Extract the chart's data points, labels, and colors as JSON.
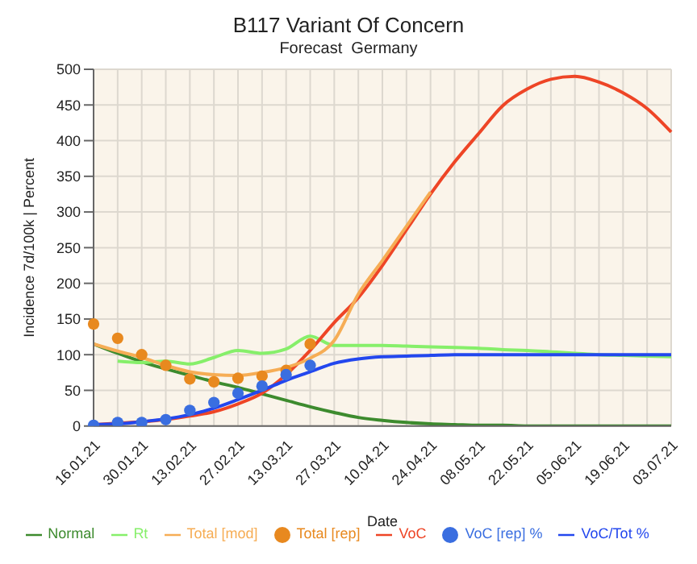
{
  "chart_data": {
    "type": "line",
    "title": "B117 Variant Of Concern",
    "subtitle": "Forecast  Germany",
    "xlabel": "Date",
    "ylabel": "Incidence 7d/100k  |  Percent",
    "categories": [
      "16.01.21",
      null,
      "30.01.21",
      null,
      "13.02.21",
      null,
      "27.02.21",
      null,
      "13.03.21",
      null,
      "27.03.21",
      null,
      "10.04.21",
      null,
      "24.04.21",
      null,
      "08.05.21",
      null,
      "22.05.21",
      null,
      "05.06.21",
      null,
      "19.06.21",
      null,
      "03.07.21"
    ],
    "ylim": [
      0,
      500
    ],
    "yticks": [
      0,
      50,
      100,
      150,
      200,
      250,
      300,
      350,
      400,
      450,
      500
    ],
    "grid": true,
    "legend": "bottom",
    "line_style": "solid",
    "series": [
      {
        "name": "Normal",
        "marker": "none",
        "color": "#3d8b2e",
        "values": [
          115,
          102,
          90,
          80,
          71,
          62,
          54,
          45,
          36,
          27,
          19,
          12,
          8,
          5,
          3,
          2,
          1,
          1,
          0,
          0,
          0,
          0,
          0,
          0,
          0
        ]
      },
      {
        "name": "Rt",
        "marker": "none",
        "color": "#86ef6a",
        "values": [
          null,
          91,
          89,
          91,
          87,
          96,
          106,
          102,
          108,
          126,
          113,
          113,
          113,
          112,
          111,
          110,
          109,
          107,
          106,
          104,
          102,
          100,
          99,
          98,
          97
        ]
      },
      {
        "name": "VoC",
        "marker": "none",
        "color": "#ee4526",
        "values": [
          2,
          4,
          6,
          9,
          14,
          20,
          31,
          46,
          72,
          106,
          145,
          180,
          225,
          275,
          325,
          370,
          410,
          449,
          472,
          486,
          490,
          482,
          467,
          445,
          412
        ]
      },
      {
        "name": "Total [mod]",
        "marker": "none",
        "color": "#f6ad55",
        "values": [
          115,
          105,
          96,
          85,
          76,
          72,
          71,
          75,
          82,
          95,
          120,
          185,
          232,
          280,
          328,
          null,
          null,
          null,
          null,
          null,
          null,
          null,
          null,
          null,
          null
        ]
      },
      {
        "name": "Total [rep]",
        "type": "scatter",
        "marker": "circle",
        "color": "#e8891f",
        "values": [
          143,
          123,
          100,
          85,
          66,
          62,
          67,
          70,
          78,
          115,
          null,
          null,
          null,
          null,
          null,
          null,
          null,
          null,
          null,
          null,
          null,
          null,
          null,
          null,
          null
        ]
      },
      {
        "name": "VoC/Tot %",
        "marker": "none",
        "color": "#2347ee",
        "values": [
          2,
          3,
          6,
          10,
          16,
          25,
          37,
          50,
          64,
          76,
          88,
          94,
          97,
          98,
          99,
          100,
          100,
          100,
          100,
          100,
          100,
          100,
          100,
          100,
          100
        ]
      },
      {
        "name": "VoC [rep] %",
        "type": "scatter",
        "marker": "circle",
        "color": "#3a6ee0",
        "values": [
          1,
          5,
          5,
          9,
          22,
          33,
          46,
          56,
          72,
          85,
          null,
          null,
          null,
          null,
          null,
          null,
          null,
          null,
          null,
          null,
          null,
          null,
          null,
          null,
          null
        ]
      }
    ]
  }
}
